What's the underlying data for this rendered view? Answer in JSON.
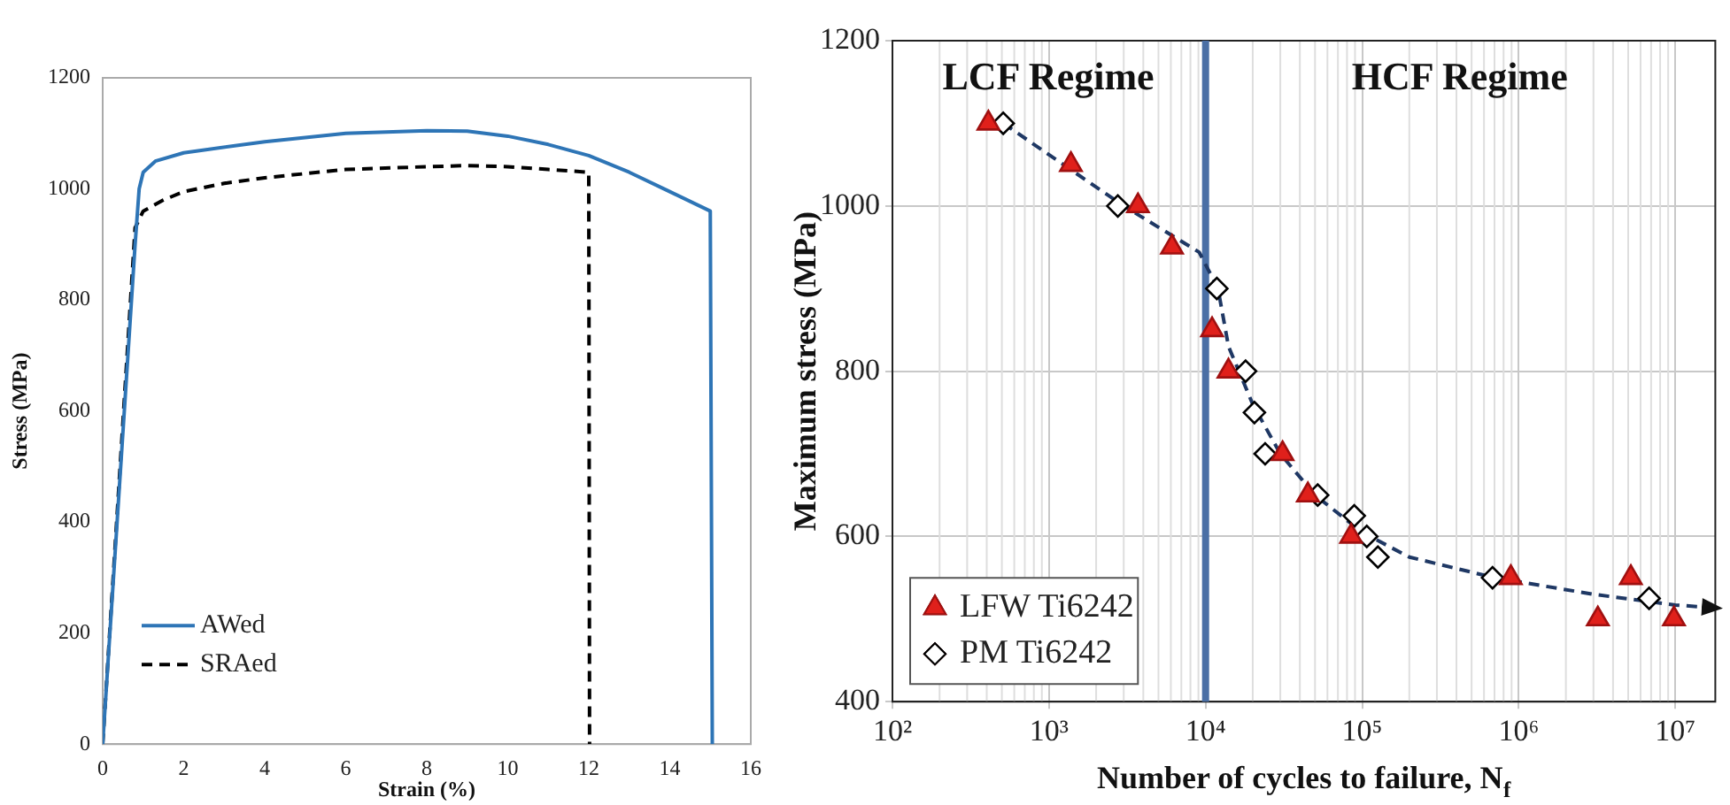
{
  "chart_data": [
    {
      "type": "line",
      "xlabel": "Strain (%)",
      "ylabel": "Stress (MPa)",
      "xlim": [
        0,
        16
      ],
      "ylim": [
        0,
        1200
      ],
      "xticks": [
        0,
        2,
        4,
        6,
        8,
        10,
        12,
        14,
        16
      ],
      "yticks": [
        0,
        200,
        400,
        600,
        800,
        1000,
        1200
      ],
      "grid": false,
      "legend": "bottom left",
      "series": [
        {
          "name": "AWed",
          "color": "#2e75b6",
          "line_style": "solid",
          "x": [
            0,
            0.8,
            0.9,
            1.0,
            1.3,
            2,
            4,
            6,
            8,
            9,
            10,
            11,
            12,
            13,
            14,
            15,
            15.05
          ],
          "values": [
            0,
            900,
            1000,
            1030,
            1050,
            1065,
            1085,
            1100,
            1105,
            1104,
            1095,
            1080,
            1060,
            1030,
            995,
            960,
            0
          ]
        },
        {
          "name": "SRAed",
          "color": "#000000",
          "line_style": "dashed",
          "x": [
            0,
            0.8,
            1,
            1.5,
            2,
            3,
            4,
            6,
            8,
            9,
            10,
            11,
            12,
            12.02
          ],
          "values": [
            0,
            930,
            960,
            980,
            995,
            1010,
            1020,
            1035,
            1040,
            1042,
            1040,
            1035,
            1030,
            0
          ]
        }
      ]
    },
    {
      "type": "scatter",
      "xlabel": "Number of cycles to failure, N$_{f}$",
      "ylabel": "Maximum stress (MPa)",
      "log": "x",
      "xlim": [
        100,
        18000000
      ],
      "ylim": [
        400,
        1200
      ],
      "xticks": [
        {
          "value": 100,
          "label": "10²"
        },
        {
          "value": 1000,
          "label": "10³"
        },
        {
          "value": 10000,
          "label": "10⁴"
        },
        {
          "value": 100000,
          "label": "10⁵"
        },
        {
          "value": 1000000,
          "label": "10⁶"
        },
        {
          "value": 10000000,
          "label": "10⁷"
        }
      ],
      "yticks": [
        400,
        600,
        800,
        1000,
        1200
      ],
      "grid": true,
      "legend": "bottom left",
      "ref_lines": [
        {
          "axis": "x",
          "value": 10000,
          "color": "#4a6fa5"
        }
      ],
      "annotations": [
        "LCF Regime",
        "HCF Regime"
      ],
      "series": [
        {
          "name": "LFW Ti6242",
          "color": "#e0201b",
          "marker": "triangle",
          "x": [
            410,
            1380,
            3700,
            6100,
            11000,
            14000,
            31000,
            45000,
            85000,
            890000,
            3200000,
            5200000,
            9800000
          ],
          "values": [
            1100,
            1050,
            1000,
            950,
            850,
            800,
            700,
            650,
            600,
            550,
            500,
            550,
            500
          ]
        },
        {
          "name": "PM Ti6242",
          "color": "#000000",
          "marker": "diamond",
          "x": [
            510,
            2750,
            11800,
            18000,
            20500,
            24000,
            52000,
            89000,
            107000,
            126000,
            680000,
            6800000
          ],
          "values": [
            1100,
            1000,
            900,
            800,
            750,
            700,
            650,
            625,
            600,
            575,
            550,
            525
          ]
        },
        {
          "type": "line",
          "color": "#1f3864",
          "marker": "none",
          "line_style": "dashed",
          "x": [
            510,
            3000,
            9100,
            12000,
            14000,
            20000,
            30000,
            50000,
            100000,
            200000,
            700000,
            3000000,
            10000000,
            14000000
          ],
          "values": [
            1100,
            1000,
            944,
            900,
            830,
            760,
            700,
            650,
            605,
            575,
            550,
            530,
            517,
            515
          ]
        }
      ]
    }
  ]
}
